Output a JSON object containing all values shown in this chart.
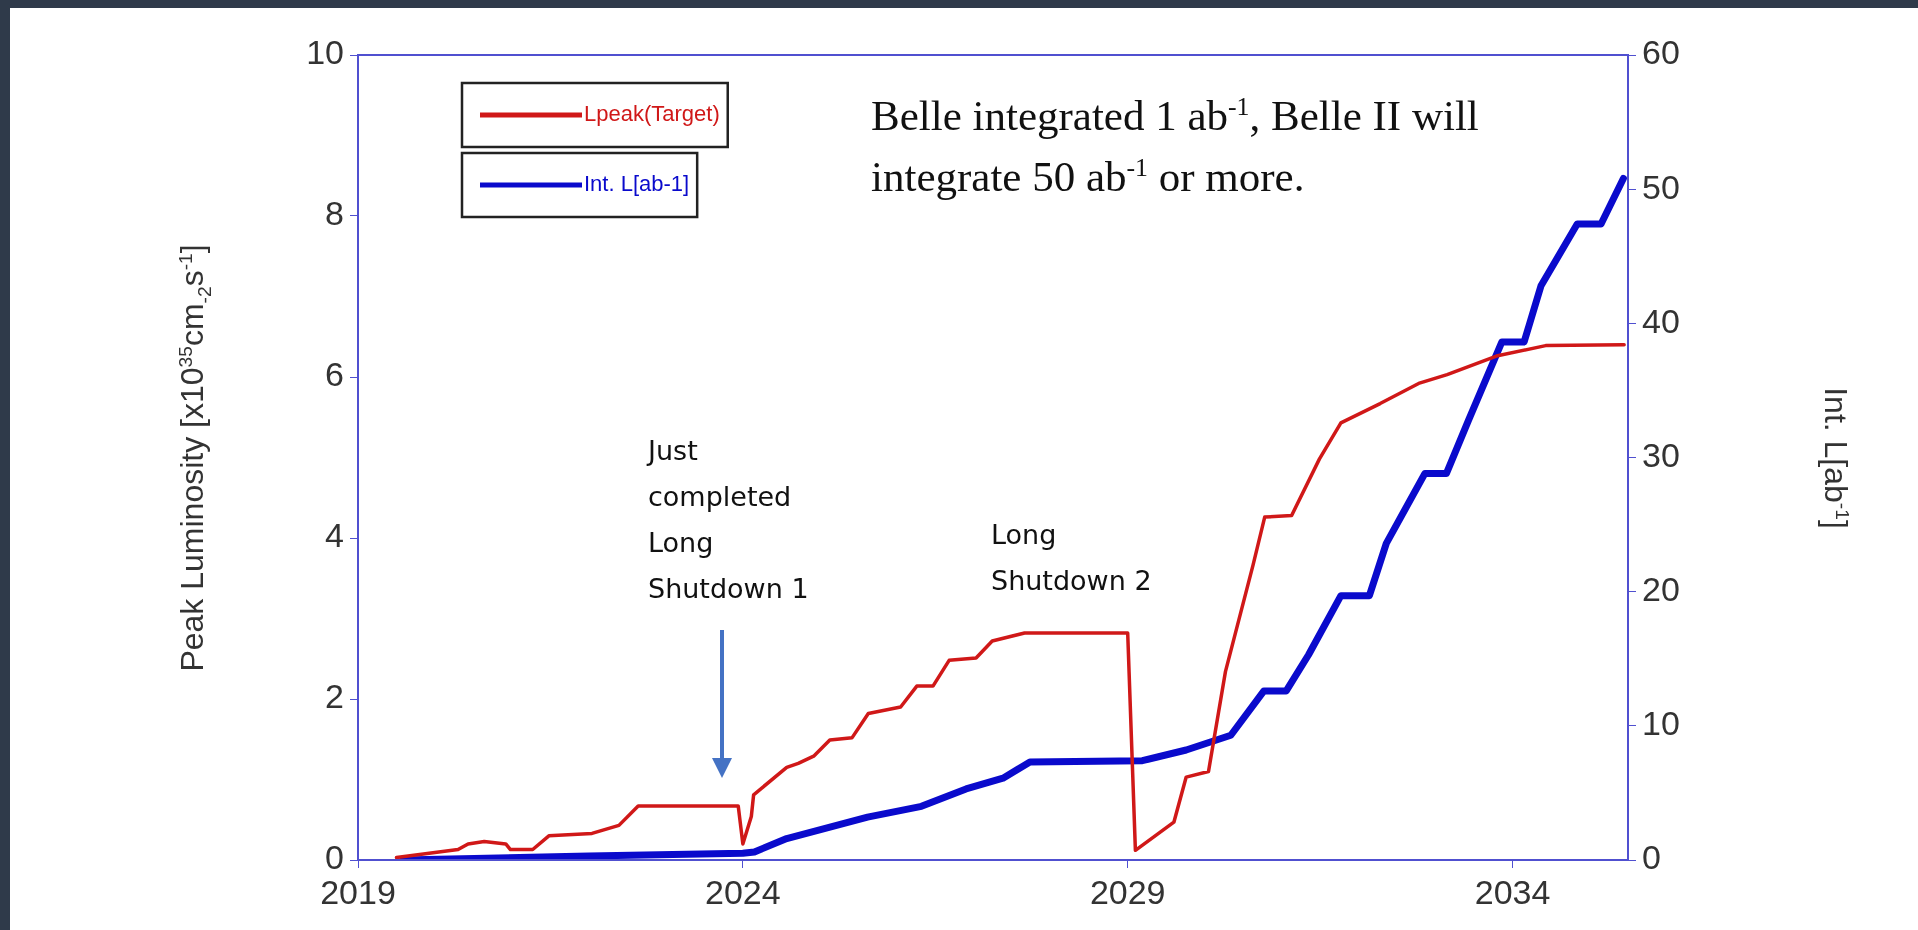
{
  "chart_data": {
    "type": "line",
    "ylabel": "Peak Luminosity [x10$^{35}$cm$_{-2}$s$^{-1}$]",
    "y2label": "Int. L[ab$^{-1}$]",
    "xlim": [
      2019,
      2035.5
    ],
    "xticks": [
      2019,
      2024,
      2029,
      2034
    ],
    "ylim": [
      0,
      10
    ],
    "yticks": [
      0,
      2,
      4,
      6,
      8,
      10
    ],
    "y2lim": [
      0,
      60
    ],
    "y2ticks": [
      0,
      10,
      20,
      30,
      40,
      50,
      60
    ],
    "legend": "top left",
    "annotations": [
      "Belle integrated 1 ab$^{-1}$, Belle II will integrate 50 ab$^{-1}$  or more.",
      "Just completed Long Shutdown 1",
      "Long Shutdown 2"
    ],
    "series": [
      {
        "name": "Lpeak(Target)",
        "color": "#d01818",
        "x": [
          2019.5,
          2020.3,
          2020.43,
          2020.64,
          2020.92,
          2020.98,
          2021.27,
          2021.48,
          2022.04,
          2022.39,
          2022.64,
          2023.94,
          2024.0,
          2024.11,
          2024.14,
          2024.57,
          2024.72,
          2024.92,
          2025.13,
          2025.42,
          2025.63,
          2026.05,
          2026.26,
          2026.47,
          2026.68,
          2027.03,
          2027.24,
          2027.66,
          2029.0,
          2029.1,
          2029.6,
          2029.76,
          2030.05,
          2030.27,
          2030.63,
          2030.78,
          2031.13,
          2031.49,
          2031.77,
          2032.28,
          2032.78,
          2033.15,
          2033.79,
          2034.43,
          2035.45
        ],
        "values": [
          0.03,
          0.13,
          0.2,
          0.23,
          0.2,
          0.13,
          0.13,
          0.3,
          0.33,
          0.43,
          0.67,
          0.67,
          0.2,
          0.54,
          0.81,
          1.15,
          1.2,
          1.29,
          1.49,
          1.52,
          1.82,
          1.9,
          2.16,
          2.16,
          2.48,
          2.51,
          2.72,
          2.82,
          2.82,
          0.12,
          0.47,
          1.03,
          1.1,
          2.34,
          3.67,
          4.26,
          4.28,
          4.98,
          5.43,
          5.67,
          5.92,
          6.03,
          6.26,
          6.39,
          6.4
        ]
      },
      {
        "name": "Int. L[ab-1]",
        "color": "#0a0acc",
        "axis": "y2",
        "x": [
          2019.58,
          2022,
          2024.0,
          2024.15,
          2024.57,
          2025.62,
          2026.32,
          2026.9,
          2027.38,
          2027.73,
          2029.19,
          2029.76,
          2030.34,
          2030.77,
          2031.06,
          2031.35,
          2031.77,
          2032.14,
          2032.36,
          2032.86,
          2033.14,
          2033.43,
          2033.86,
          2034.15,
          2034.37,
          2034.84,
          2035.15,
          2035.44
        ],
        "values": [
          0,
          0.3,
          0.5,
          0.6,
          1.6,
          3.2,
          4.0,
          5.3,
          6.1,
          7.3,
          7.4,
          8.2,
          9.3,
          12.6,
          12.6,
          15.3,
          19.7,
          19.7,
          23.6,
          28.8,
          28.8,
          32.8,
          38.6,
          38.6,
          42.8,
          47.4,
          47.4,
          50.8
        ]
      }
    ]
  }
}
